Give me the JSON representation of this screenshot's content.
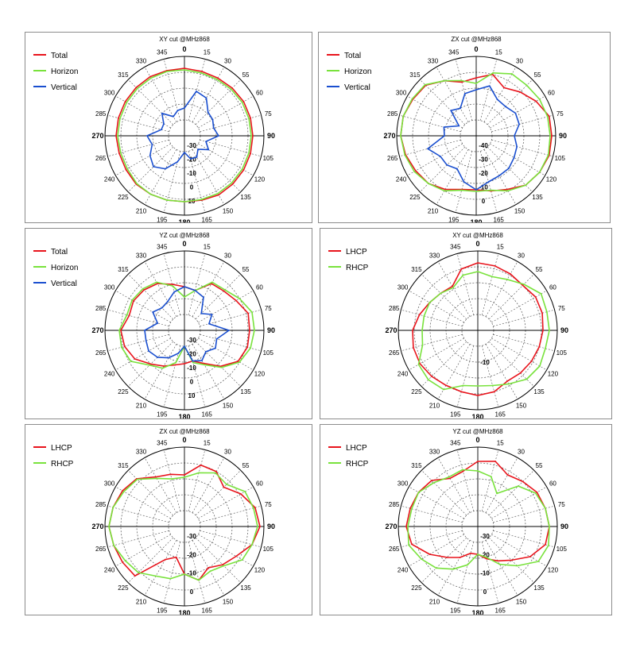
{
  "colors": {
    "red": "#e8141c",
    "green": "#79e23c",
    "blue": "#1a4fcf"
  },
  "chart_data": [
    {
      "type": "line",
      "title": "XY cut @MHz868",
      "angle_labels": [
        "0",
        "15",
        "30",
        "55",
        "60",
        "75",
        "90",
        "105",
        "120",
        "135",
        "150",
        "165",
        "180",
        "195",
        "210",
        "225",
        "240",
        "265",
        "270",
        "285",
        "300",
        "315",
        "330",
        "345"
      ],
      "radial_labels": [
        "-30",
        "-20",
        "-10",
        "0",
        "10"
      ],
      "series": [
        {
          "name": "Total",
          "color": "#e8141c",
          "values": [
            0.85,
            0.84,
            0.84,
            0.85,
            0.86,
            0.86,
            0.86,
            0.86,
            0.86,
            0.86,
            0.86,
            0.84,
            0.83,
            0.84,
            0.85,
            0.86,
            0.85,
            0.85,
            0.86,
            0.86,
            0.86,
            0.86,
            0.86,
            0.85
          ]
        },
        {
          "name": "Horizon",
          "color": "#79e23c",
          "values": [
            0.83,
            0.82,
            0.82,
            0.83,
            0.84,
            0.84,
            0.84,
            0.84,
            0.84,
            0.84,
            0.84,
            0.83,
            0.83,
            0.84,
            0.85,
            0.85,
            0.83,
            0.83,
            0.84,
            0.84,
            0.84,
            0.84,
            0.84,
            0.84
          ]
        },
        {
          "name": "Vertical",
          "color": "#1a4fcf",
          "values": [
            0.35,
            0.58,
            0.55,
            0.42,
            0.41,
            0.38,
            0.43,
            0.28,
            0.35,
            0.24,
            0.31,
            0.3,
            0.21,
            0.34,
            0.48,
            0.55,
            0.5,
            0.42,
            0.47,
            0.3,
            0.3,
            0.4,
            0.28,
            0.33
          ]
        }
      ]
    },
    {
      "type": "line",
      "title": "ZX cut @MHz868",
      "angle_labels": [
        "0",
        "15",
        "30",
        "55",
        "60",
        "75",
        "90",
        "105",
        "120",
        "135",
        "150",
        "165",
        "180",
        "195",
        "210",
        "225",
        "240",
        "265",
        "270",
        "285",
        "300",
        "315",
        "330",
        "345"
      ],
      "radial_labels": [
        "-40",
        "-30",
        "-20",
        "-10",
        "0"
      ],
      "series": [
        {
          "name": "Total",
          "color": "#e8141c",
          "values": [
            0.73,
            0.8,
            0.7,
            0.78,
            0.87,
            0.95,
            0.95,
            0.95,
            0.92,
            0.88,
            0.78,
            0.72,
            0.68,
            0.7,
            0.78,
            0.85,
            0.88,
            0.92,
            0.95,
            0.95,
            0.92,
            0.9,
            0.8,
            0.7
          ]
        },
        {
          "name": "Horizon",
          "color": "#79e23c",
          "values": [
            0.66,
            0.82,
            0.9,
            0.9,
            0.92,
            0.93,
            0.93,
            0.94,
            0.92,
            0.88,
            0.8,
            0.71,
            0.7,
            0.71,
            0.8,
            0.85,
            0.9,
            0.93,
            0.95,
            0.95,
            0.93,
            0.91,
            0.8,
            0.72
          ]
        },
        {
          "name": "Vertical",
          "color": "#1a4fcf",
          "values": [
            0.58,
            0.65,
            0.53,
            0.52,
            0.57,
            0.56,
            0.48,
            0.53,
            0.55,
            0.58,
            0.58,
            0.6,
            0.68,
            0.6,
            0.48,
            0.52,
            0.52,
            0.63,
            0.4,
            0.42,
            0.25,
            0.45,
            0.4,
            0.55
          ]
        }
      ]
    },
    {
      "type": "line",
      "title": "YZ cut @MHz868",
      "angle_labels": [
        "0",
        "15",
        "30",
        "55",
        "60",
        "75",
        "90",
        "105",
        "120",
        "135",
        "150",
        "165",
        "180",
        "195",
        "210",
        "225",
        "240",
        "265",
        "270",
        "285",
        "300",
        "315",
        "330",
        "345"
      ],
      "radial_labels": [
        "-30",
        "-20",
        "-10",
        "0",
        "10"
      ],
      "series": [
        {
          "name": "Total",
          "color": "#e8141c",
          "values": [
            0.55,
            0.52,
            0.68,
            0.7,
            0.75,
            0.83,
            0.82,
            0.82,
            0.78,
            0.64,
            0.48,
            0.4,
            0.42,
            0.45,
            0.52,
            0.6,
            0.72,
            0.78,
            0.8,
            0.72,
            0.74,
            0.72,
            0.68,
            0.6
          ]
        },
        {
          "name": "Horizon",
          "color": "#79e23c",
          "values": [
            0.42,
            0.52,
            0.7,
            0.72,
            0.8,
            0.88,
            0.88,
            0.86,
            0.8,
            0.66,
            0.5,
            0.42,
            0.2,
            0.42,
            0.55,
            0.62,
            0.78,
            0.82,
            0.82,
            0.75,
            0.76,
            0.74,
            0.7,
            0.58
          ]
        },
        {
          "name": "Vertical",
          "color": "#1a4fcf",
          "values": [
            0.55,
            0.52,
            0.48,
            0.3,
            0.4,
            0.32,
            0.56,
            0.42,
            0.45,
            0.38,
            0.44,
            0.4,
            0.2,
            0.3,
            0.4,
            0.48,
            0.52,
            0.5,
            0.5,
            0.35,
            0.46,
            0.4,
            0.42,
            0.5
          ]
        }
      ]
    },
    {
      "type": "line",
      "title": "XY cut @MHz868",
      "angle_labels": [
        "0",
        "15",
        "30",
        "55",
        "60",
        "75",
        "90",
        "105",
        "120",
        "135",
        "150",
        "165",
        "180",
        "195",
        "210",
        "225",
        "240",
        "265",
        "270",
        "285",
        "300",
        "315",
        "330",
        "345"
      ],
      "radial_labels": [
        "-10"
      ],
      "series": [
        {
          "name": "LHCP",
          "color": "#e8141c",
          "values": [
            0.85,
            0.84,
            0.82,
            0.8,
            0.84,
            0.84,
            0.82,
            0.8,
            0.78,
            0.76,
            0.74,
            0.8,
            0.82,
            0.8,
            0.8,
            0.82,
            0.84,
            0.84,
            0.82,
            0.76,
            0.7,
            0.66,
            0.64,
            0.8
          ]
        },
        {
          "name": "RHCP",
          "color": "#79e23c",
          "values": [
            0.74,
            0.7,
            0.74,
            0.82,
            0.92,
            0.9,
            0.9,
            0.88,
            0.9,
            0.87,
            0.78,
            0.72,
            0.7,
            0.72,
            0.86,
            0.88,
            0.86,
            0.72,
            0.7,
            0.7,
            0.7,
            0.66,
            0.62,
            0.72
          ]
        }
      ]
    },
    {
      "type": "line",
      "title": "ZX cut @MHz868",
      "angle_labels": [
        "0",
        "15",
        "30",
        "55",
        "60",
        "75",
        "90",
        "105",
        "120",
        "135",
        "150",
        "165",
        "180",
        "195",
        "210",
        "225",
        "240",
        "265",
        "270",
        "285",
        "300",
        "315",
        "330",
        "345"
      ],
      "radial_labels": [
        "-30",
        "-20",
        "-10",
        "0"
      ],
      "series": [
        {
          "name": "LHCP",
          "color": "#e8141c",
          "values": [
            0.65,
            0.8,
            0.8,
            0.7,
            0.82,
            0.92,
            0.95,
            0.88,
            0.75,
            0.68,
            0.6,
            0.7,
            0.6,
            0.4,
            0.48,
            0.88,
            0.9,
            0.92,
            0.95,
            0.93,
            0.9,
            0.85,
            0.72,
            0.68
          ]
        },
        {
          "name": "RHCP",
          "color": "#79e23c",
          "values": [
            0.62,
            0.7,
            0.78,
            0.75,
            0.88,
            0.9,
            0.92,
            0.88,
            0.84,
            0.7,
            0.65,
            0.7,
            0.6,
            0.68,
            0.72,
            0.82,
            0.86,
            0.92,
            0.95,
            0.93,
            0.88,
            0.84,
            0.7,
            0.62
          ]
        }
      ]
    },
    {
      "type": "line",
      "title": "YZ cut @MHz868",
      "angle_labels": [
        "0",
        "15",
        "30",
        "55",
        "60",
        "75",
        "90",
        "105",
        "120",
        "135",
        "150",
        "165",
        "180",
        "195",
        "210",
        "225",
        "240",
        "265",
        "270",
        "285",
        "300",
        "315",
        "330",
        "345"
      ],
      "radial_labels": [
        "-30",
        "-20",
        "-10",
        "0"
      ],
      "series": [
        {
          "name": "LHCP",
          "color": "#e8141c",
          "values": [
            0.82,
            0.85,
            0.75,
            0.8,
            0.86,
            0.88,
            0.9,
            0.88,
            0.76,
            0.6,
            0.5,
            0.42,
            0.35,
            0.35,
            0.45,
            0.55,
            0.7,
            0.86,
            0.9,
            0.88,
            0.86,
            0.82,
            0.7,
            0.72
          ]
        },
        {
          "name": "RHCP",
          "color": "#79e23c",
          "values": [
            0.7,
            0.65,
            0.48,
            0.72,
            0.84,
            0.88,
            0.9,
            0.92,
            0.88,
            0.7,
            0.55,
            0.4,
            0.35,
            0.5,
            0.62,
            0.74,
            0.82,
            0.9,
            0.88,
            0.86,
            0.86,
            0.78,
            0.72,
            0.74
          ]
        }
      ]
    }
  ]
}
